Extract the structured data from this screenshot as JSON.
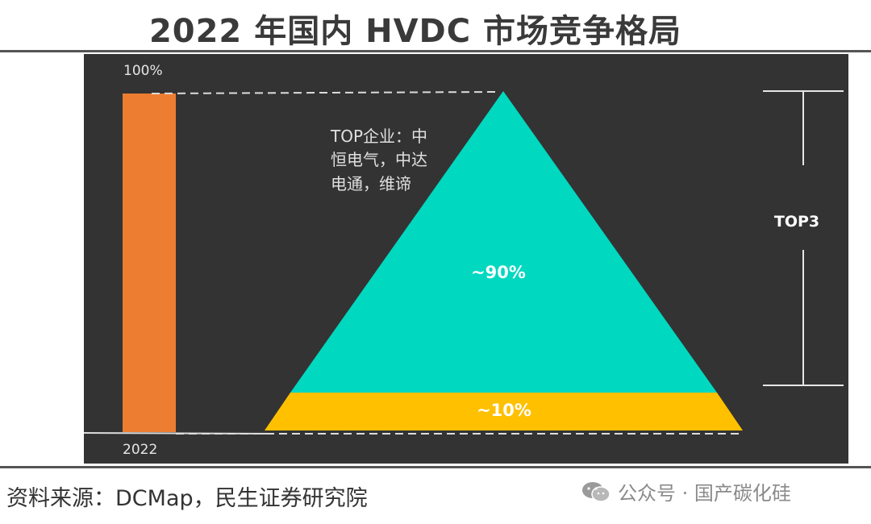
{
  "title": "2022 年国内 HVDC 市场竞争格局",
  "source": "资料来源：DCMap，民生证券研究院",
  "watermark": "公众号 · 国产碳化硅",
  "chart_data": {
    "type": "bar",
    "categories": [
      "2022"
    ],
    "values": [
      100
    ],
    "bar_top_label": "100%",
    "segments": [
      {
        "label": "~90%",
        "value": 90,
        "color": "#00d8c0"
      },
      {
        "label": "~10%",
        "value": 10,
        "color": "#ffc000"
      }
    ],
    "annotation": "TOP企业：中恒电气，中达电通，维谛",
    "annotation_lines": [
      "TOP企业：中",
      "恒电气，中达",
      "电通，维谛"
    ],
    "bracket_label": "TOP3",
    "colors": {
      "background": "#333333",
      "bar": "#ed7d31",
      "top": "#00d8c0",
      "rest": "#ffc000"
    }
  }
}
